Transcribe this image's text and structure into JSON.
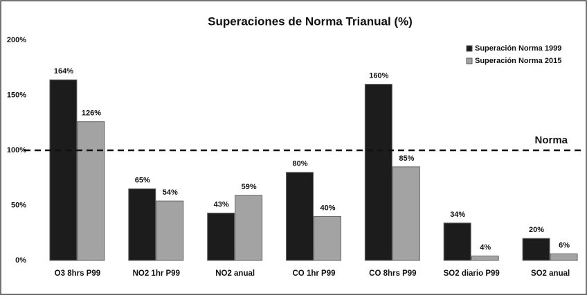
{
  "chart_data": {
    "type": "bar",
    "title": "Superaciones de Norma Trianual (%)",
    "categories": [
      "O3  8hrs P99",
      "NO2  1hr P99",
      "NO2  anual",
      "CO  1hr P99",
      "CO 8hrs  P99",
      "SO2  diario P99",
      "SO2  anual"
    ],
    "series": [
      {
        "name": "Superación Norma 1999",
        "color": "#1c1c1c",
        "values": [
          164,
          65,
          43,
          80,
          160,
          34,
          20
        ],
        "value_labels": [
          "164%",
          "65%",
          "43%",
          "80%",
          "160%",
          "34%",
          "20%"
        ]
      },
      {
        "name": "Superación Norma 2015",
        "color": "#a3a3a3",
        "values": [
          126,
          54,
          59,
          40,
          85,
          4,
          6
        ],
        "value_labels": [
          "126%",
          "54%",
          "59%",
          "40%",
          "85%",
          "4%",
          "6%"
        ]
      }
    ],
    "ylim": [
      0,
      200
    ],
    "yticks": [
      {
        "value": 0,
        "label": "0%"
      },
      {
        "value": 50,
        "label": "50%"
      },
      {
        "value": 100,
        "label": "100%"
      },
      {
        "value": 150,
        "label": "150%"
      },
      {
        "value": 200,
        "label": "200%"
      }
    ],
    "reference_line": {
      "value": 100,
      "label": "Norma"
    },
    "legend": "top-right",
    "grid": false
  }
}
